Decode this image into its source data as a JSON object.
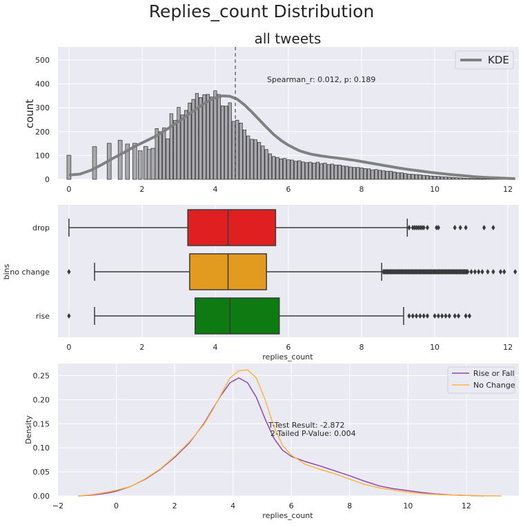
{
  "figure": {
    "suptitle": "Replies_count Distribution"
  },
  "colors": {
    "panel_bg": "#eaeaf2",
    "grid": "#ffffff",
    "hist_bar": "#a9a9ad",
    "hist_edge": "#2b2b2b",
    "kde": "#808080",
    "drop": "#e02020",
    "no_change": "#e29b1e",
    "rise": "#0d7a12",
    "rise_or_fall": "#8e44ad",
    "no_change_kde": "#ffb340"
  },
  "chart_data": [
    {
      "type": "bar",
      "title": "all tweets",
      "ylabel": "count",
      "xlabel": "",
      "xlim": [
        -0.3,
        12.3
      ],
      "ylim": [
        0,
        555
      ],
      "xticks": [
        "0",
        "2",
        "4",
        "6",
        "8",
        "10",
        "12"
      ],
      "yticks": [
        "0",
        "100",
        "200",
        "300",
        "400",
        "500"
      ],
      "legend": {
        "entries": [
          "KDE"
        ],
        "placement": "top-right"
      },
      "annotation": "Spearman_r: 0.012, p: 0.189",
      "vline_x": 4.55,
      "bins": {
        "x": [
          0.0,
          0.69,
          1.1,
          1.39,
          1.61,
          1.79,
          1.95,
          2.08,
          2.2,
          2.3,
          2.4,
          2.48,
          2.56,
          2.64,
          2.71,
          2.77,
          2.83,
          2.89,
          2.94,
          3.0,
          3.04,
          3.09,
          3.14,
          3.18,
          3.22,
          3.26,
          3.3,
          3.33,
          3.37,
          3.4,
          3.43,
          3.47,
          3.5,
          3.53,
          3.56,
          3.58,
          3.61,
          3.64,
          3.66,
          3.69,
          3.71,
          3.74,
          3.76,
          3.78,
          3.81,
          3.83,
          3.85,
          3.87,
          3.89,
          3.91,
          3.93,
          3.95,
          3.97,
          3.99,
          4.01,
          4.03,
          4.04,
          4.06,
          4.08,
          4.09,
          4.11,
          4.13,
          4.14,
          4.16,
          4.17,
          4.19,
          4.2,
          4.22,
          4.23,
          4.25,
          4.26,
          4.28,
          4.29,
          4.3,
          4.32,
          4.33,
          4.34,
          4.36,
          4.37,
          4.38,
          4.39,
          4.41,
          4.42,
          4.43,
          4.44,
          4.45,
          4.47,
          4.48,
          4.49,
          4.5,
          4.51,
          4.52,
          4.53,
          4.54,
          4.55,
          4.56,
          4.57,
          4.58,
          4.6,
          4.61,
          4.62,
          4.63,
          4.64,
          4.65,
          4.66,
          4.67,
          4.68,
          4.69,
          4.7,
          4.71,
          4.72,
          4.73,
          4.74,
          4.75,
          4.76,
          4.77,
          4.78,
          4.79,
          4.8,
          4.81,
          4.82,
          4.83,
          4.84,
          4.85,
          4.86,
          4.87,
          4.88,
          4.89,
          4.9,
          4.91,
          4.92,
          4.93,
          4.94,
          4.95,
          4.96,
          4.97,
          4.98,
          4.99
        ],
        "values": []
      },
      "hist_x": [
        0.0,
        0.7,
        1.1,
        1.4,
        1.6,
        1.8,
        1.95,
        2.1,
        2.2,
        2.3,
        2.4,
        2.5,
        2.6,
        2.7,
        2.8,
        2.9,
        3.0,
        3.1,
        3.2,
        3.3,
        3.4,
        3.5,
        3.6,
        3.7,
        3.8,
        3.9,
        4.0,
        4.1,
        4.2,
        4.3,
        4.4,
        4.5,
        4.6,
        4.7,
        4.8,
        4.9,
        5.0,
        5.1,
        5.2,
        5.3,
        5.4,
        5.5,
        5.6,
        5.7,
        5.8,
        5.9,
        6.0,
        6.1,
        6.2,
        6.3,
        6.4,
        6.5,
        6.6,
        6.7,
        6.8,
        6.9,
        7.0,
        7.1,
        7.2,
        7.3,
        7.4,
        7.5,
        7.6,
        7.7,
        7.8,
        7.9,
        8.0,
        8.1,
        8.2,
        8.3,
        8.4,
        8.5,
        8.6,
        8.7,
        8.8,
        8.9,
        9.0,
        9.1,
        9.2,
        9.3,
        9.4,
        9.5,
        9.6,
        9.7,
        9.8,
        9.9,
        10.0,
        10.1,
        10.2,
        10.3,
        10.4,
        10.5,
        10.6,
        10.7,
        10.8,
        10.9,
        11.0,
        11.1,
        11.2,
        11.3,
        11.4,
        11.5,
        11.6,
        11.7,
        11.8,
        11.9,
        12.0
      ],
      "hist_values": [
        101,
        137,
        151,
        164,
        148,
        151,
        120,
        138,
        125,
        130,
        213,
        200,
        216,
        170,
        275,
        247,
        302,
        270,
        289,
        320,
        335,
        360,
        343,
        355,
        356,
        345,
        371,
        356,
        308,
        307,
        321,
        243,
        248,
        236,
        207,
        182,
        168,
        166,
        155,
        140,
        125,
        107,
        96,
        92,
        86,
        88,
        82,
        81,
        76,
        78,
        73,
        70,
        72,
        68,
        72,
        66,
        68,
        62,
        64,
        60,
        60,
        56,
        55,
        52,
        50,
        50,
        48,
        45,
        44,
        40,
        41,
        38,
        36,
        34,
        34,
        31,
        28,
        27,
        24,
        22,
        21,
        20,
        19,
        17,
        16,
        14,
        13,
        12,
        11,
        10,
        9,
        8,
        7,
        6,
        5,
        4,
        4,
        3,
        3,
        2,
        2,
        2,
        1,
        1,
        1,
        1,
        1
      ],
      "kde": {
        "x": [
          0.0,
          0.3,
          0.6,
          0.9,
          1.2,
          1.5,
          1.8,
          2.1,
          2.4,
          2.7,
          3.0,
          3.3,
          3.6,
          3.9,
          4.2,
          4.4,
          4.6,
          4.8,
          5.0,
          5.2,
          5.4,
          5.6,
          5.8,
          6.0,
          6.3,
          6.6,
          6.9,
          7.2,
          7.5,
          7.8,
          8.1,
          8.4,
          8.7,
          9.0,
          9.3,
          9.6,
          9.9,
          10.2,
          10.5,
          10.8,
          11.1,
          11.4,
          11.7,
          12.0,
          12.2
        ],
        "y": [
          18,
          22,
          38,
          62,
          88,
          112,
          138,
          160,
          183,
          212,
          243,
          275,
          308,
          336,
          350,
          348,
          336,
          312,
          282,
          250,
          218,
          188,
          163,
          143,
          120,
          106,
          98,
          92,
          86,
          80,
          72,
          64,
          56,
          48,
          41,
          35,
          29,
          24,
          19,
          15,
          11,
          8,
          6,
          4,
          3
        ]
      }
    },
    {
      "type": "box",
      "title": "",
      "xlabel": "replies_count",
      "ylabel": "bins",
      "xlim": [
        -0.3,
        12.3
      ],
      "xticks": [
        "0",
        "2",
        "4",
        "6",
        "8",
        "10",
        "12"
      ],
      "categories": [
        "drop",
        "no change",
        "rise"
      ],
      "series": [
        {
          "name": "drop",
          "whisker_low": 0.0,
          "q1": 3.25,
          "median": 4.35,
          "q3": 5.65,
          "whisker_high": 9.25,
          "outliers": [
            9.3,
            9.4,
            9.45,
            9.5,
            9.55,
            9.6,
            9.65,
            9.7,
            9.8,
            10.05,
            10.1,
            10.55,
            10.7,
            10.85,
            11.35,
            11.6
          ]
        },
        {
          "name": "no change",
          "whisker_low": 0.7,
          "q1": 3.3,
          "median": 4.35,
          "q3": 5.4,
          "whisker_high": 8.55,
          "outliers": [
            0.0,
            8.6,
            8.7,
            8.8,
            8.9,
            9.0,
            9.1,
            9.2,
            9.3,
            9.4,
            9.5,
            9.6,
            9.7,
            9.8,
            9.9,
            10.0,
            10.1,
            10.2,
            10.3,
            10.4,
            10.5,
            10.6,
            10.7,
            10.8,
            10.9,
            11.0,
            11.1,
            11.2,
            11.3,
            11.45,
            11.6,
            11.8,
            11.9,
            12.2
          ]
        },
        {
          "name": "rise",
          "whisker_low": 0.7,
          "q1": 3.45,
          "median": 4.4,
          "q3": 5.75,
          "whisker_high": 9.15,
          "outliers": [
            0.0,
            9.3,
            9.4,
            9.5,
            9.6,
            9.7,
            9.8,
            10.0,
            10.1,
            10.2,
            10.3,
            10.4,
            10.55,
            10.65,
            10.85,
            10.95
          ]
        }
      ]
    },
    {
      "type": "line",
      "title": "",
      "xlabel": "replies_count",
      "ylabel": "Density",
      "xlim": [
        -2,
        13.8
      ],
      "ylim": [
        0,
        0.275
      ],
      "xticks": [
        "−2",
        "0",
        "2",
        "4",
        "6",
        "8",
        "10",
        "12"
      ],
      "yticks": [
        "0.00",
        "0.05",
        "0.10",
        "0.15",
        "0.20",
        "0.25"
      ],
      "legend": {
        "entries": [
          "Rise or Fall",
          "No Change"
        ],
        "placement": "top-right"
      },
      "annotation_lines": [
        "T-Test Result: -2.872",
        "2-Tailed P-Value: 0.004"
      ],
      "series": [
        {
          "name": "Rise or Fall",
          "x": [
            -1.3,
            -0.8,
            -0.3,
            0.0,
            0.5,
            1.0,
            1.5,
            2.0,
            2.5,
            3.0,
            3.3,
            3.6,
            3.9,
            4.2,
            4.5,
            4.8,
            5.1,
            5.4,
            5.7,
            6.0,
            6.5,
            7.0,
            7.5,
            8.0,
            8.5,
            9.0,
            9.5,
            10.0,
            10.5,
            11.0,
            11.5,
            12.0,
            12.6
          ],
          "y": [
            0.0,
            0.002,
            0.006,
            0.01,
            0.02,
            0.035,
            0.055,
            0.08,
            0.11,
            0.15,
            0.18,
            0.21,
            0.235,
            0.245,
            0.235,
            0.205,
            0.16,
            0.12,
            0.095,
            0.082,
            0.071,
            0.062,
            0.052,
            0.042,
            0.031,
            0.021,
            0.015,
            0.011,
            0.007,
            0.004,
            0.002,
            0.001,
            0.0
          ]
        },
        {
          "name": "No Change",
          "x": [
            -1.3,
            -0.8,
            -0.3,
            0.0,
            0.5,
            1.0,
            1.5,
            2.0,
            2.5,
            3.0,
            3.3,
            3.6,
            3.9,
            4.2,
            4.5,
            4.8,
            5.1,
            5.4,
            5.7,
            6.0,
            6.5,
            7.0,
            7.5,
            8.0,
            8.5,
            9.0,
            9.5,
            10.0,
            10.5,
            11.0,
            11.5,
            12.0,
            12.6,
            13.2
          ],
          "y": [
            0.0,
            0.003,
            0.008,
            0.012,
            0.02,
            0.036,
            0.056,
            0.082,
            0.112,
            0.148,
            0.178,
            0.212,
            0.245,
            0.26,
            0.262,
            0.245,
            0.2,
            0.145,
            0.105,
            0.085,
            0.065,
            0.055,
            0.046,
            0.035,
            0.024,
            0.017,
            0.012,
            0.008,
            0.005,
            0.003,
            0.002,
            0.001,
            0.0005,
            0.0
          ]
        }
      ]
    }
  ]
}
